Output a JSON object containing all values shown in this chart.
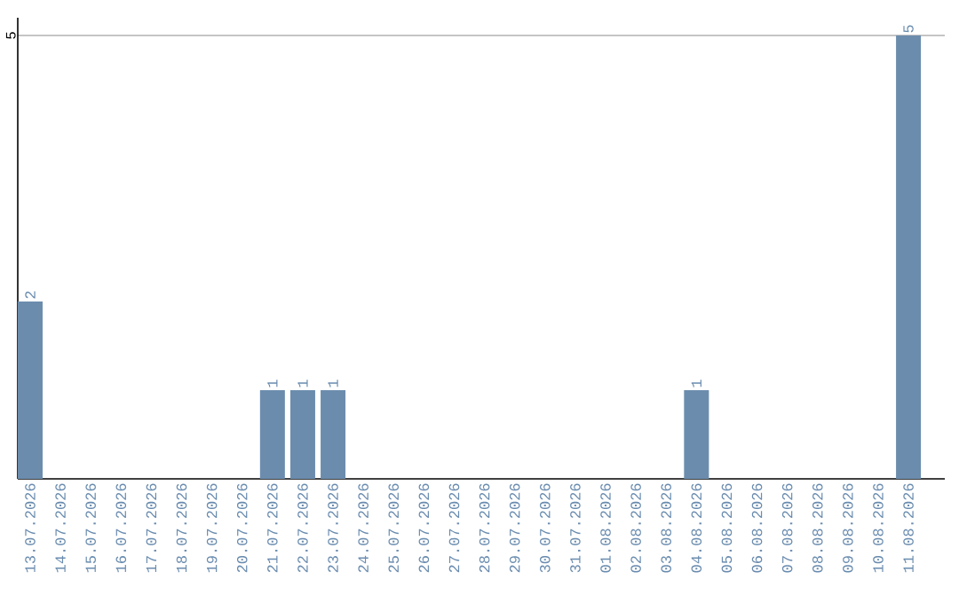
{
  "chart_data": {
    "type": "bar",
    "categories": [
      "13.07.2026",
      "14.07.2026",
      "15.07.2026",
      "16.07.2026",
      "17.07.2026",
      "18.07.2026",
      "19.07.2026",
      "20.07.2026",
      "21.07.2026",
      "22.07.2026",
      "23.07.2026",
      "24.07.2026",
      "25.07.2026",
      "26.07.2026",
      "27.07.2026",
      "28.07.2026",
      "29.07.2026",
      "30.07.2026",
      "31.07.2026",
      "01.08.2026",
      "02.08.2026",
      "03.08.2026",
      "04.08.2026",
      "05.08.2026",
      "06.08.2026",
      "07.08.2026",
      "08.08.2026",
      "09.08.2026",
      "10.08.2026",
      "11.08.2026"
    ],
    "values": [
      2,
      0,
      0,
      0,
      0,
      0,
      0,
      0,
      1,
      1,
      1,
      0,
      0,
      0,
      0,
      0,
      0,
      0,
      0,
      0,
      0,
      0,
      1,
      0,
      0,
      0,
      0,
      0,
      0,
      5
    ],
    "value_labels": [
      "2",
      null,
      null,
      null,
      null,
      null,
      null,
      null,
      "1",
      "1",
      "1",
      null,
      null,
      null,
      null,
      null,
      null,
      null,
      null,
      null,
      null,
      null,
      "1",
      null,
      null,
      null,
      null,
      null,
      null,
      "5"
    ],
    "color": "#6b8cad",
    "ylim": [
      0,
      5.2
    ],
    "yticks": [
      5
    ],
    "grid": "y"
  }
}
